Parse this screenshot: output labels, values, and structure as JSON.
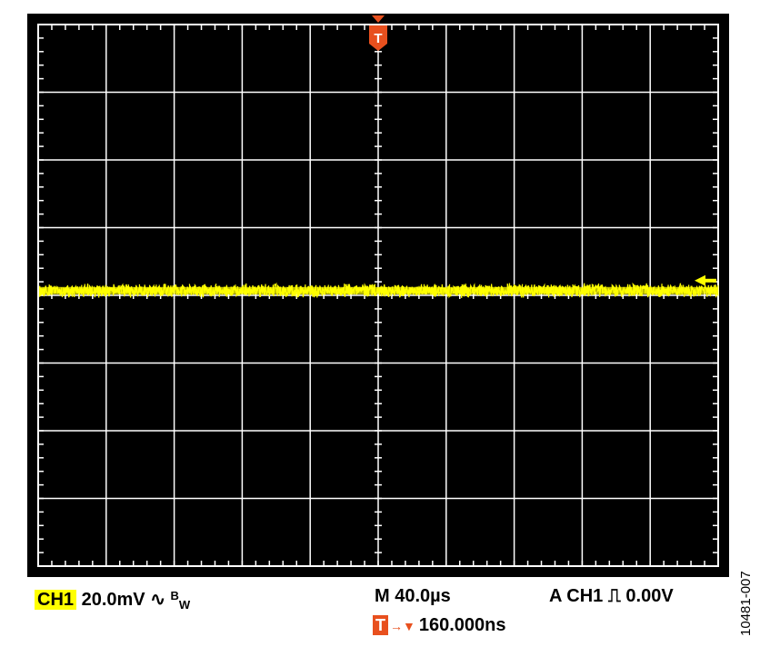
{
  "chart_data": {
    "type": "line",
    "title": "",
    "grid": true,
    "divisions": {
      "x": 10,
      "y": 8
    },
    "series": [
      {
        "channel": "CH1",
        "color": "#ffff00",
        "description_values": "flat noise trace centered at 0 V, approximately ±2 mV peak noise",
        "x_us": [
          -200,
          -160,
          -120,
          -80,
          -40,
          0,
          40,
          80,
          120,
          160,
          200
        ],
        "y_mV": [
          0,
          0,
          0,
          0,
          0,
          0,
          0,
          0,
          0,
          0,
          0
        ]
      }
    ],
    "ground_marker": "left-arrow at right edge",
    "trigger_marker": "T"
  },
  "status": {
    "channel": "CH1",
    "volts_per_div": "20.0mV",
    "coupling_symbol": "∿",
    "bw_b": "B",
    "bw_w": "W",
    "timebase": "M 40.0µs",
    "trigger_info": "A  CH1",
    "trigger_edge_symbol": "⎍",
    "trigger_level": "0.00V",
    "trigger_badge": "T",
    "trigger_arrows": "→▼",
    "trigger_position": "160.000ns"
  },
  "figure_id": "10481-007",
  "colors": {
    "trace": "#ffff00",
    "trigger": "#e8501e",
    "grid": "#ffffff",
    "screen": "#000000"
  }
}
